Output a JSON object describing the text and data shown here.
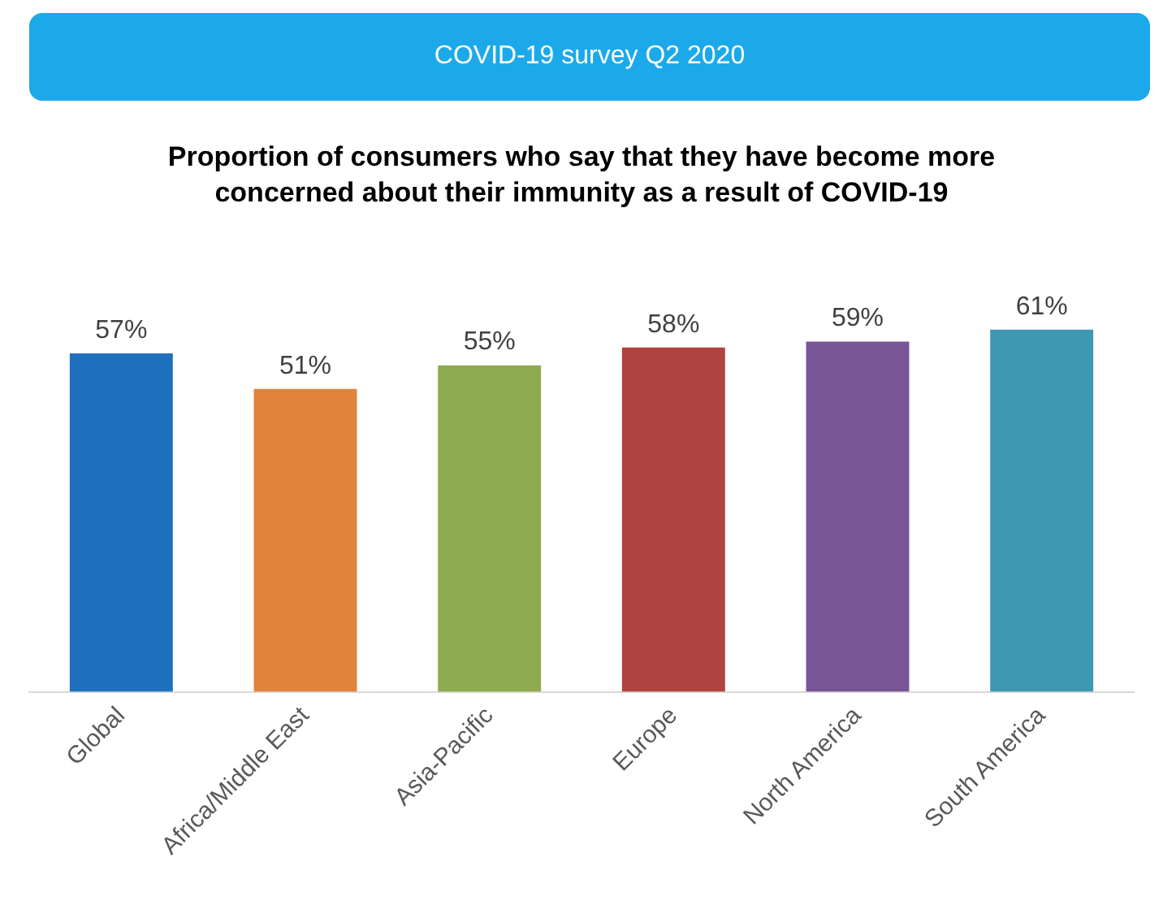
{
  "chart_data": {
    "type": "bar",
    "title": "COVID-19 survey Q2 2020",
    "subtitle": "Proportion of consumers who say that they have become more concerned about their immunity as a result of COVID-19",
    "categories": [
      "Global",
      "Africa/Middle East",
      "Asia-Pacific",
      "Europe",
      "North America",
      "South America"
    ],
    "values": [
      57,
      51,
      55,
      58,
      59,
      61
    ],
    "colors": [
      "#1f6fbf",
      "#e0843c",
      "#8fab4f",
      "#b0423f",
      "#785596",
      "#3f98b1"
    ],
    "value_labels": [
      "57%",
      "51%",
      "55%",
      "58%",
      "59%",
      "61%"
    ],
    "tick_labels": "x",
    "grid": false,
    "legend": false
  }
}
